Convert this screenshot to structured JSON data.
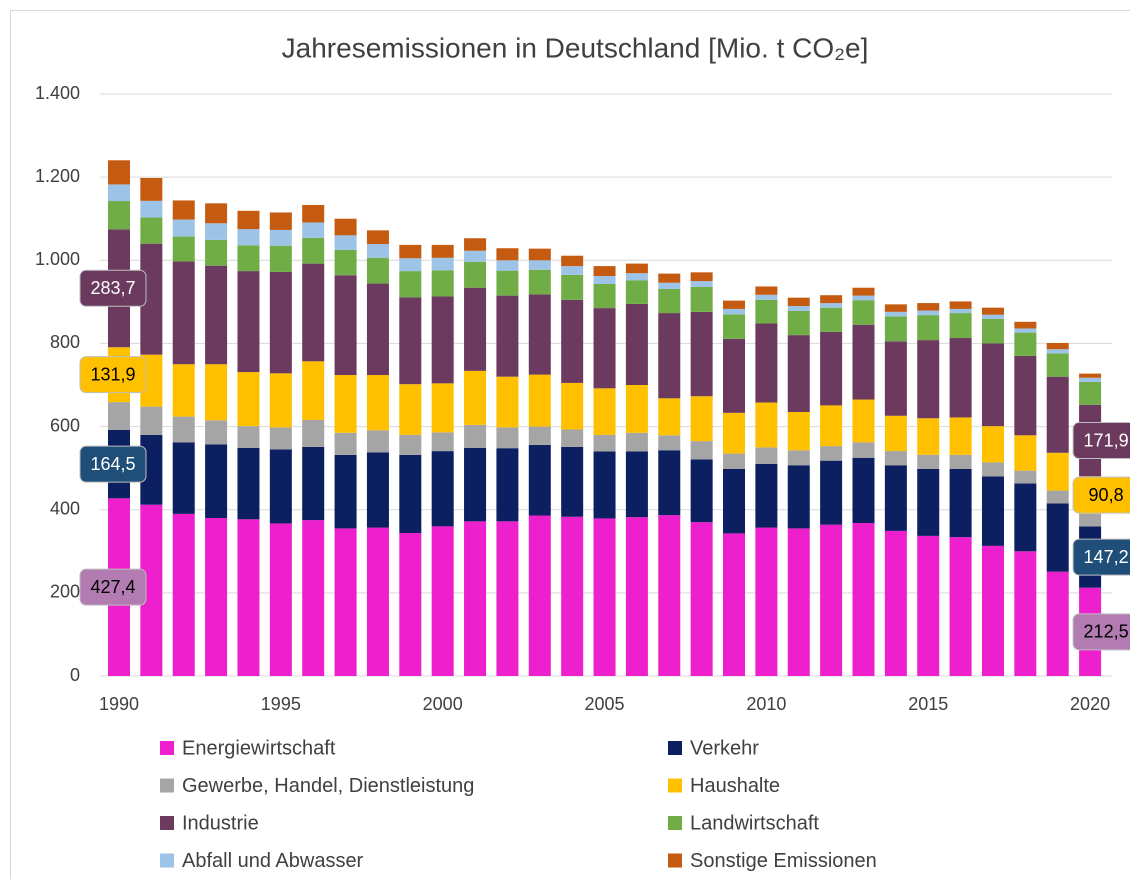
{
  "chart_data": {
    "type": "stacked_bar",
    "title": "Jahresemissionen in Deutschland [Mio. t CO₂e]",
    "categories": [
      "1990",
      null,
      null,
      null,
      null,
      "1995",
      null,
      null,
      null,
      null,
      "2000",
      null,
      null,
      null,
      null,
      "2005",
      null,
      null,
      null,
      null,
      "2010",
      null,
      null,
      null,
      null,
      "2015",
      null,
      null,
      null,
      null,
      "2020"
    ],
    "ylim": [
      0,
      1400
    ],
    "yticks": [
      0,
      200,
      400,
      600,
      800,
      {
        "value": 1000,
        "label": "1.000"
      },
      {
        "value": 1200,
        "label": "1.200"
      },
      {
        "value": 1400,
        "label": "1.400"
      }
    ],
    "grid": true,
    "legend": "bottom",
    "series": [
      {
        "name": "Energiewirtschaft",
        "color": "#ee1fcc",
        "label_color": "#b27cb2",
        "label_text": "#000000",
        "values": [
          427.4,
          412,
          390,
          380,
          377,
          367,
          375,
          355,
          357,
          344,
          360,
          372,
          372,
          386,
          383,
          379,
          382,
          387,
          370,
          343,
          357,
          355,
          364,
          368,
          349,
          337,
          334,
          313,
          300,
          251,
          212.5
        ],
        "value_labels": [
          "427,4",
          null,
          null,
          null,
          null,
          null,
          null,
          null,
          null,
          null,
          null,
          null,
          null,
          null,
          null,
          null,
          null,
          null,
          null,
          null,
          null,
          null,
          null,
          null,
          null,
          null,
          null,
          null,
          null,
          null,
          "212,5"
        ]
      },
      {
        "name": "Verkehr",
        "color": "#0c1f60",
        "label_color": "#1f4e79",
        "label_text": "#ffffff",
        "values": [
          164.5,
          168,
          172,
          177,
          172,
          178,
          176,
          177,
          181,
          188,
          181,
          177,
          176,
          170,
          168,
          161,
          158,
          156,
          151,
          155,
          153,
          152,
          154,
          157,
          158,
          161,
          164,
          167,
          163,
          164,
          147.2
        ],
        "value_labels": [
          "164,5",
          null,
          null,
          null,
          null,
          null,
          null,
          null,
          null,
          null,
          null,
          null,
          null,
          null,
          null,
          null,
          null,
          null,
          null,
          null,
          null,
          null,
          null,
          null,
          null,
          null,
          null,
          null,
          null,
          null,
          "147,2"
        ]
      },
      {
        "name": "Gewerbe, Handel, Dienstleistung",
        "color": "#a5a5a5",
        "values": [
          67,
          68,
          62,
          58,
          52,
          53,
          65,
          53,
          53,
          48,
          45,
          55,
          50,
          44,
          42,
          40,
          45,
          36,
          44,
          37,
          40,
          36,
          35,
          37,
          34,
          34,
          34,
          34,
          31,
          31,
          30
        ]
      },
      {
        "name": "Haushalte",
        "color": "#ffc000",
        "label_color": "#ffc000",
        "label_text": "#000000",
        "values": [
          131.9,
          125,
          126,
          135,
          130,
          130,
          141,
          139,
          133,
          122,
          118,
          130,
          122,
          125,
          112,
          112,
          115,
          89,
          108,
          98,
          108,
          92,
          98,
          103,
          85,
          88,
          90,
          87,
          85,
          91,
          90.8
        ],
        "value_labels": [
          "131,9",
          null,
          null,
          null,
          null,
          null,
          null,
          null,
          null,
          null,
          null,
          null,
          null,
          null,
          null,
          null,
          null,
          null,
          null,
          null,
          null,
          null,
          null,
          null,
          null,
          null,
          null,
          null,
          null,
          null,
          "90,8"
        ]
      },
      {
        "name": "Industrie",
        "color": "#6b3a5e",
        "label_color": "#6b3a5e",
        "label_text": "#ffffff",
        "values": [
          283.7,
          267,
          247,
          237,
          243,
          244,
          235,
          240,
          220,
          209,
          209,
          200,
          195,
          193,
          200,
          193,
          195,
          205,
          203,
          178,
          190,
          185,
          177,
          180,
          179,
          188,
          191,
          199,
          191,
          183,
          171.9
        ],
        "value_labels": [
          "283,7",
          null,
          null,
          null,
          null,
          null,
          null,
          null,
          null,
          null,
          null,
          null,
          null,
          null,
          null,
          null,
          null,
          null,
          null,
          null,
          null,
          null,
          null,
          null,
          null,
          null,
          null,
          null,
          null,
          null,
          "171,9"
        ]
      },
      {
        "name": "Landwirtschaft",
        "color": "#70ad47",
        "values": [
          68,
          63,
          60,
          62,
          62,
          63,
          62,
          61,
          62,
          63,
          63,
          62,
          60,
          59,
          60,
          58,
          57,
          58,
          60,
          59,
          57,
          58,
          58,
          59,
          60,
          60,
          60,
          59,
          56,
          56,
          55
        ]
      },
      {
        "name": "Abfall und Abwasser",
        "color": "#9dc3e6",
        "values": [
          40,
          40,
          41,
          40,
          39,
          38,
          37,
          35,
          33,
          31,
          30,
          27,
          25,
          23,
          21,
          19,
          17,
          15,
          14,
          13,
          12,
          12,
          11,
          11,
          11,
          11,
          10,
          10,
          10,
          10,
          10
        ]
      },
      {
        "name": "Sonstige Emissionen",
        "color": "#c55a11",
        "values": [
          58,
          55,
          46,
          48,
          44,
          42,
          42,
          40,
          33,
          32,
          31,
          30,
          29,
          28,
          25,
          24,
          23,
          22,
          21,
          20,
          20,
          20,
          19,
          19,
          18,
          18,
          18,
          17,
          16,
          15,
          10
        ]
      }
    ]
  }
}
